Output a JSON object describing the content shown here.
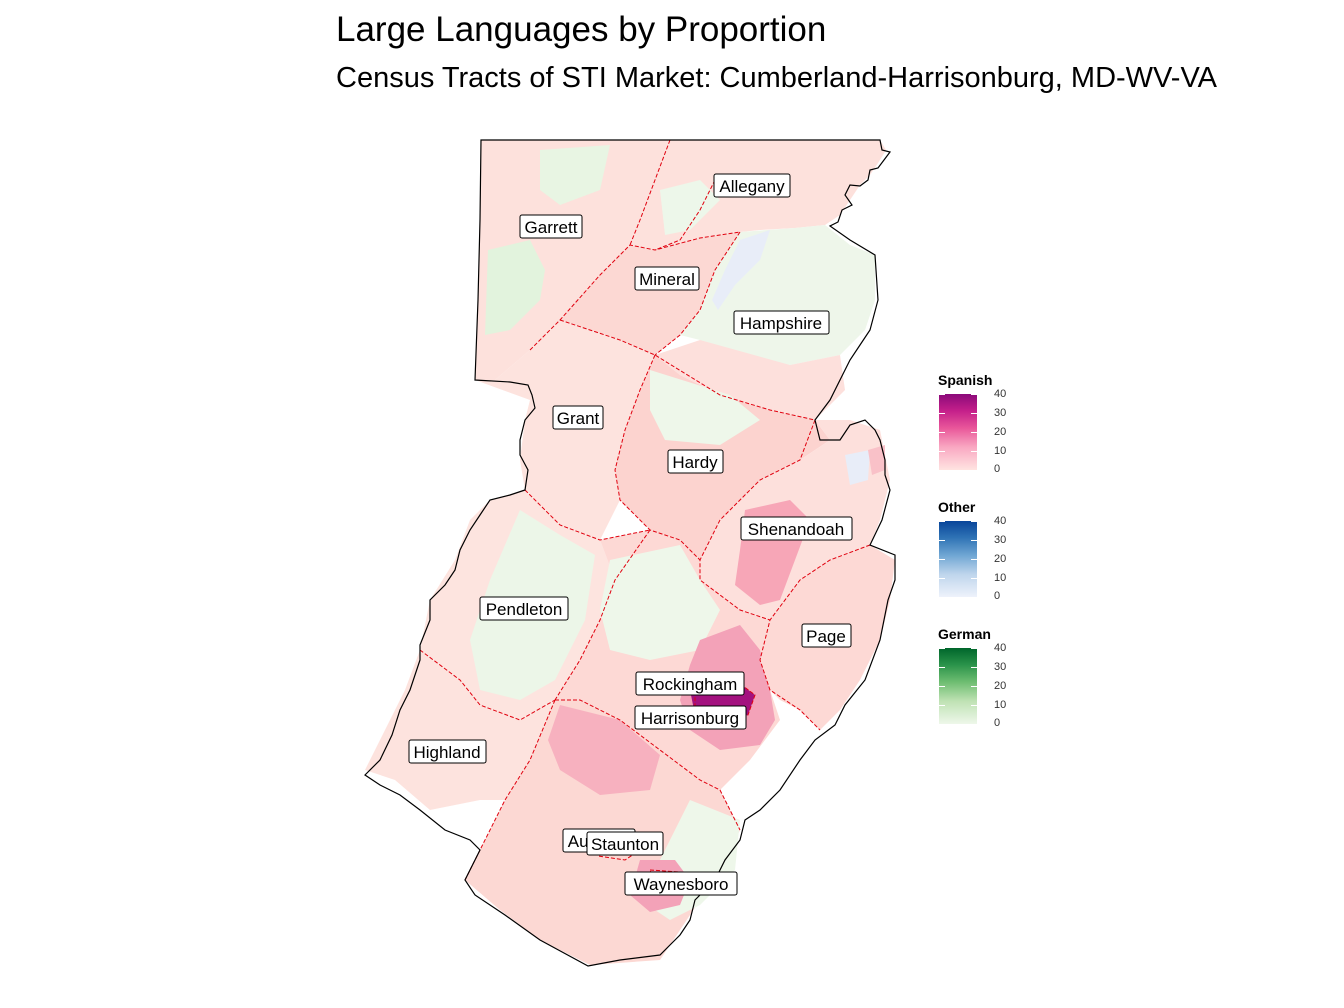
{
  "title": "Large Languages by Proportion",
  "subtitle": "Census Tracts of STI Market: Cumberland-Harrisonburg, MD-WV-VA",
  "counties": [
    {
      "name": "Allegany"
    },
    {
      "name": "Garrett"
    },
    {
      "name": "Mineral"
    },
    {
      "name": "Hampshire"
    },
    {
      "name": "Grant"
    },
    {
      "name": "Hardy"
    },
    {
      "name": "Shenandoah"
    },
    {
      "name": "Pendleton"
    },
    {
      "name": "Page"
    },
    {
      "name": "Rockingham"
    },
    {
      "name": "Harrisonburg"
    },
    {
      "name": "Highland"
    },
    {
      "name": "Augusta"
    },
    {
      "name": "Staunton"
    },
    {
      "name": "Waynesboro"
    }
  ],
  "legends": [
    {
      "title": "Spanish",
      "ticks": [
        "40",
        "30",
        "20",
        "10",
        "0"
      ],
      "colors": [
        "#ffe4e1",
        "#f9a8c2",
        "#e9579a",
        "#c41f8a",
        "#8b0a7a"
      ]
    },
    {
      "title": "Other",
      "ticks": [
        "40",
        "30",
        "20",
        "10",
        "0"
      ],
      "colors": [
        "#eef2fb",
        "#bed5ec",
        "#6fa6d3",
        "#2f73b5",
        "#08459a"
      ]
    },
    {
      "title": "German",
      "ticks": [
        "40",
        "30",
        "20",
        "10",
        "0"
      ],
      "colors": [
        "#eef7ea",
        "#bfe2b4",
        "#6fbe72",
        "#2a934a",
        "#00662b"
      ]
    }
  ]
}
